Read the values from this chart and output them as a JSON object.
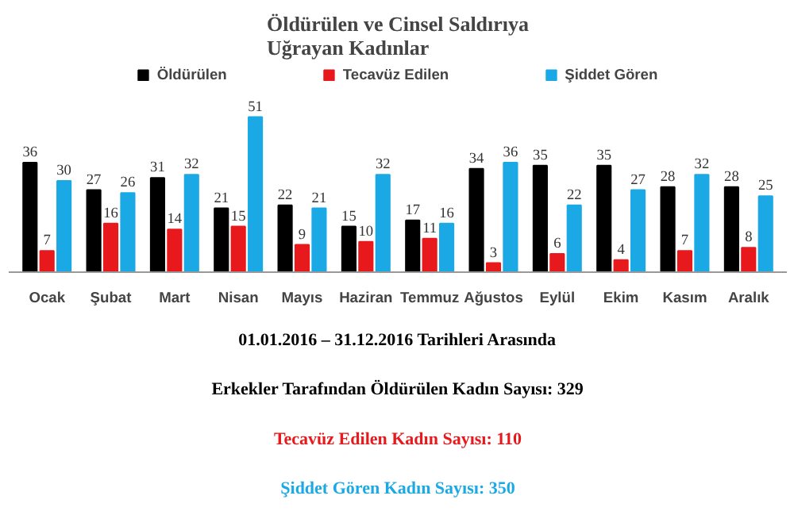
{
  "chart_data": {
    "type": "bar",
    "title": "Öldürülen ve Cinsel Saldırıya\nUğrayan Kadınlar",
    "categories": [
      "Ocak",
      "Şubat",
      "Mart",
      "Nisan",
      "Mayıs",
      "Haziran",
      "Temmuz",
      "Ağustos",
      "Eylül",
      "Ekim",
      "Kasım",
      "Aralık"
    ],
    "series": [
      {
        "name": "Öldürülen",
        "color": "#000000",
        "values": [
          36,
          27,
          31,
          21,
          22,
          15,
          17,
          34,
          35,
          35,
          28,
          28
        ]
      },
      {
        "name": "Tecavüz Edilen",
        "color": "#e8191c",
        "values": [
          7,
          16,
          14,
          15,
          9,
          10,
          11,
          3,
          6,
          4,
          7,
          8
        ]
      },
      {
        "name": "Şiddet Gören",
        "color": "#1ba9e6",
        "values": [
          30,
          26,
          32,
          51,
          21,
          32,
          16,
          36,
          22,
          27,
          32,
          25
        ]
      }
    ],
    "data_labels": true,
    "legend": "top",
    "grid": false,
    "annotations": [
      "01.01.2016 – 31.12.2016 Tarihleri Arasında",
      "Erkekler Tarafından Öldürülen Kadın Sayısı: 329",
      "Tecavüz Edilen Kadın Sayısı: 110",
      "Şiddet Gören Kadın Sayısı: 350"
    ]
  }
}
